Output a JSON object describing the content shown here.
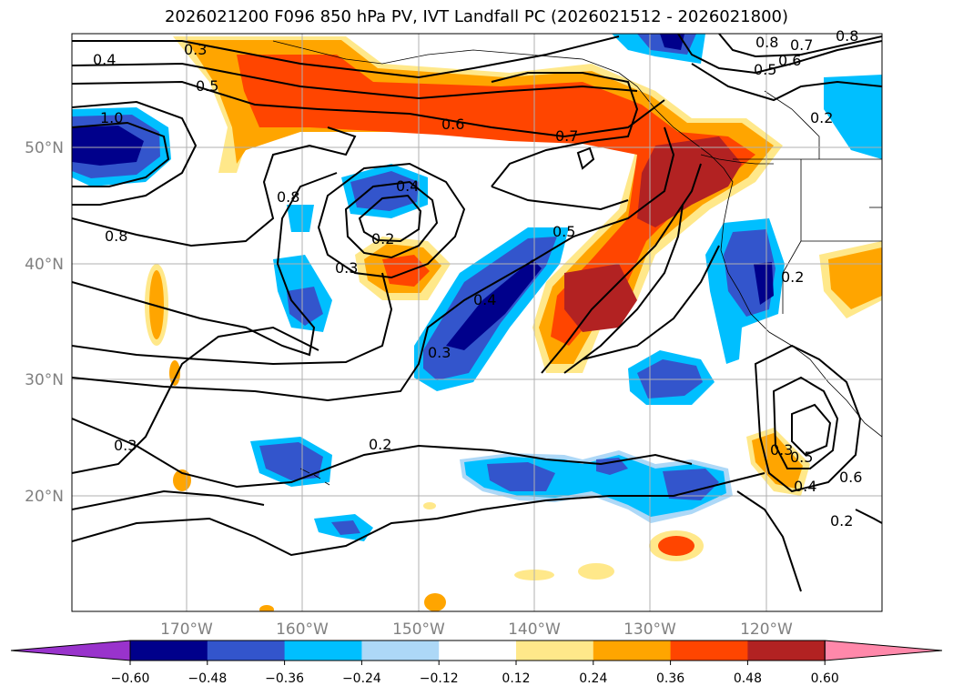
{
  "title": "2026021200 F096 850 hPa PV, IVT Landfall PC (2026021512 - 2026021800)",
  "map": {
    "lon_labels": [
      "170°W",
      "160°W",
      "150°W",
      "140°W",
      "130°W",
      "120°W"
    ],
    "lat_labels": [
      "50°N",
      "40°N",
      "30°N",
      "20°N"
    ],
    "contour_labels": [
      "0.4",
      "0.3",
      "0.5",
      "1.0",
      "0.6",
      "0.7",
      "0.8",
      "0.7",
      "0.8",
      "0.6",
      "0.5",
      "0.2",
      "0.8",
      "0.4",
      "0.2",
      "0.3",
      "0.8",
      "0.5",
      "0.4",
      "0.3",
      "0.2",
      "0.3",
      "0.2",
      "0.3",
      "0.5",
      "0.4",
      "0.6",
      "0.2"
    ]
  },
  "colorbar": {
    "ticks": [
      "−0.60",
      "−0.48",
      "−0.36",
      "−0.24",
      "−0.12",
      "0.12",
      "0.24",
      "0.36",
      "0.48",
      "0.60"
    ],
    "colors": [
      "#9933cc",
      "#00008b",
      "#3355cc",
      "#00bfff",
      "#add8f7",
      "#ffffff",
      "#ffe88a",
      "#ffa500",
      "#ff4500",
      "#b22222",
      "#ff88aa"
    ]
  }
}
